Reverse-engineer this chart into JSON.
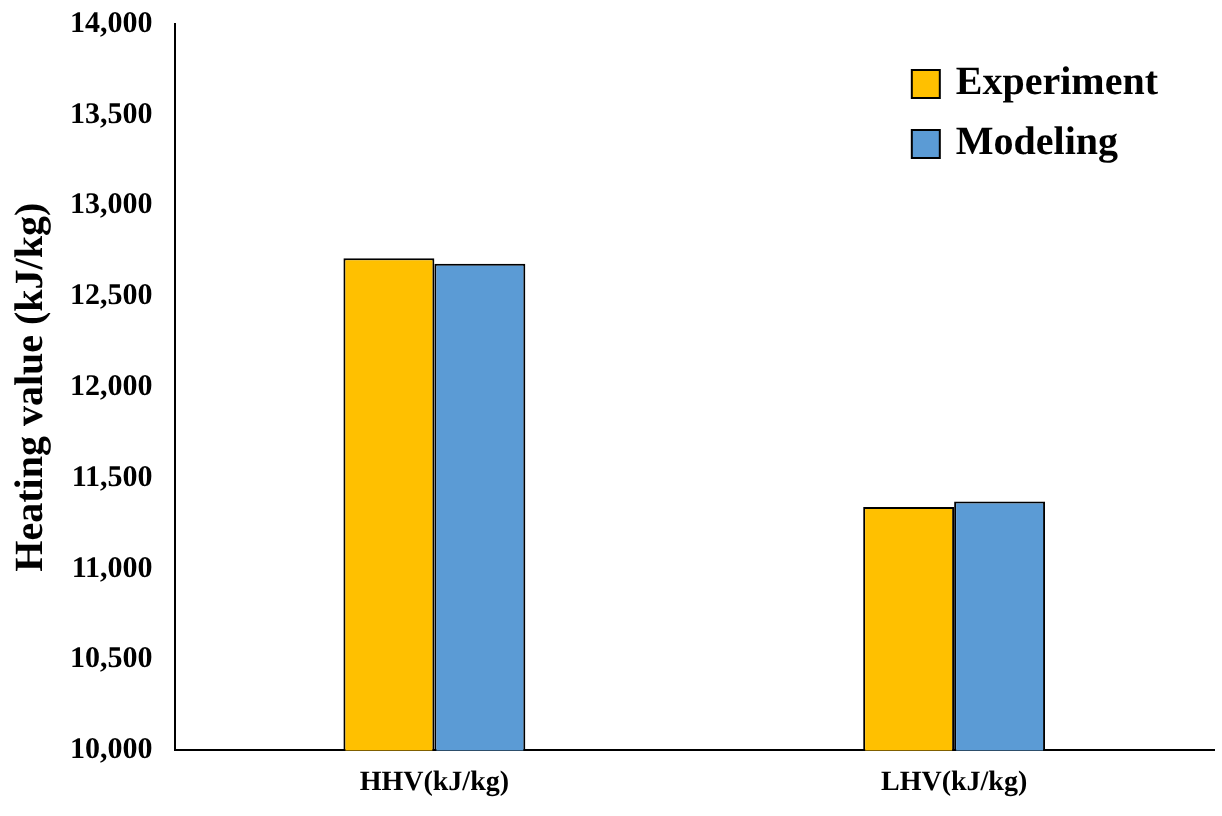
{
  "chart_data": {
    "type": "bar",
    "ylabel": "Heating value (kJ/kg)",
    "categories": [
      "HHV(kJ/kg)",
      "LHV(kJ/kg)"
    ],
    "series": [
      {
        "name": "Experiment",
        "color": "#ffc000",
        "values": [
          12710,
          11340
        ]
      },
      {
        "name": "Modeling",
        "color": "#5b9bd5",
        "values": [
          12680,
          11370
        ]
      }
    ],
    "ylim": [
      10000,
      14000
    ],
    "yticks": [
      {
        "value": 10000,
        "label": "10,000"
      },
      {
        "value": 10500,
        "label": "10,500"
      },
      {
        "value": 11000,
        "label": "11,000"
      },
      {
        "value": 11500,
        "label": "11,500"
      },
      {
        "value": 12000,
        "label": "12,000"
      },
      {
        "value": 12500,
        "label": "12,500"
      },
      {
        "value": 13000,
        "label": "13,000"
      },
      {
        "value": 13500,
        "label": "13,500"
      },
      {
        "value": 14000,
        "label": "14,000"
      }
    ],
    "grid": false,
    "legend": "top right"
  }
}
